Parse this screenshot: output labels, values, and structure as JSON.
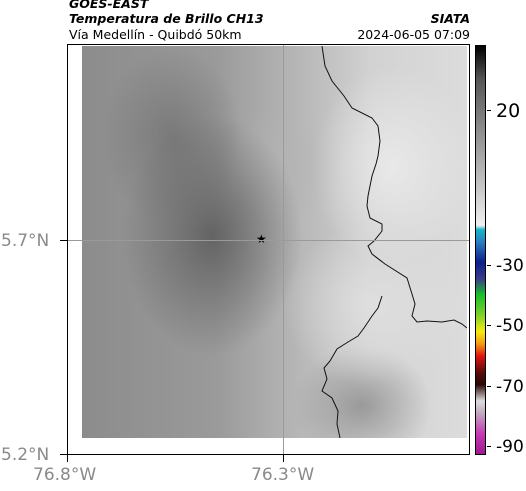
{
  "header": {
    "satellite": "GOES-EAST",
    "product": "Temperatura de Brillo CH13",
    "route": "Vía Medellín - Quibdó 50km",
    "source": "SIATA",
    "timestamp": "2024-06-05 07:09"
  },
  "axes": {
    "lat_labels": [
      "5.7°N",
      "5.2°N"
    ],
    "lon_labels": [
      "76.8°W",
      "76.3°W"
    ]
  },
  "marker": {
    "icon": "star-icon",
    "symbol": "★"
  },
  "colorbar": {
    "ticks": [
      {
        "value": 20,
        "label": "20"
      },
      {
        "value": -30,
        "label": "-30"
      },
      {
        "value": -50,
        "label": "-50"
      },
      {
        "value": -70,
        "label": "-70"
      },
      {
        "value": -90,
        "label": "-90"
      }
    ],
    "colors": {
      "top_black": "#000000",
      "cyan": "#1ab4c8",
      "blue": "#0b1f8a",
      "green": "#17c12a",
      "yellow": "#f6ea10",
      "red": "#e01410",
      "dark": "#2a0606",
      "magenta": "#c63ab4"
    }
  }
}
